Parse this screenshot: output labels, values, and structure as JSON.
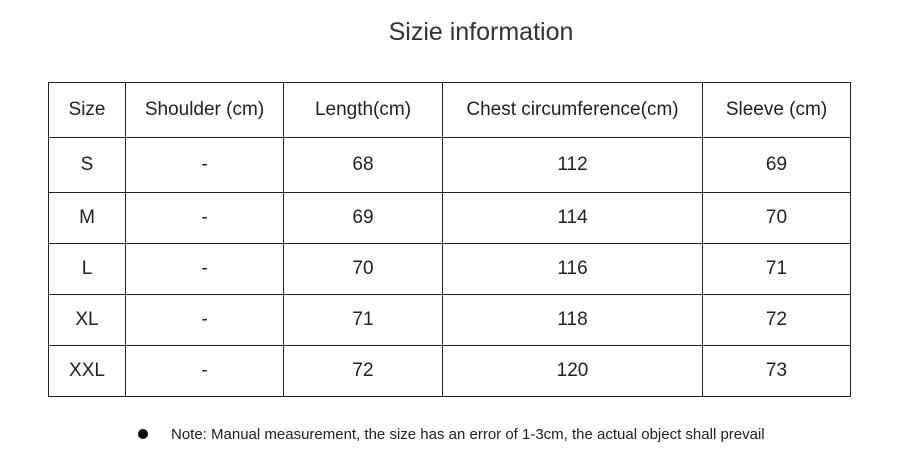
{
  "title": "Sizie information",
  "table": {
    "headers": [
      "Size",
      "Shoulder (cm)",
      "Length(cm)",
      "Chest circumference(cm)",
      "Sleeve (cm)"
    ],
    "rows": [
      [
        "S",
        "-",
        "68",
        "112",
        "69"
      ],
      [
        "M",
        "-",
        "69",
        "114",
        "70"
      ],
      [
        "L",
        "-",
        "70",
        "116",
        "71"
      ],
      [
        "XL",
        "-",
        "71",
        "118",
        "72"
      ],
      [
        "XXL",
        "-",
        "72",
        "120",
        "73"
      ]
    ]
  },
  "note": {
    "icon": "bullet-icon",
    "text": "Note: Manual measurement, the size has an error of 1-3cm, the actual object shall prevail"
  }
}
